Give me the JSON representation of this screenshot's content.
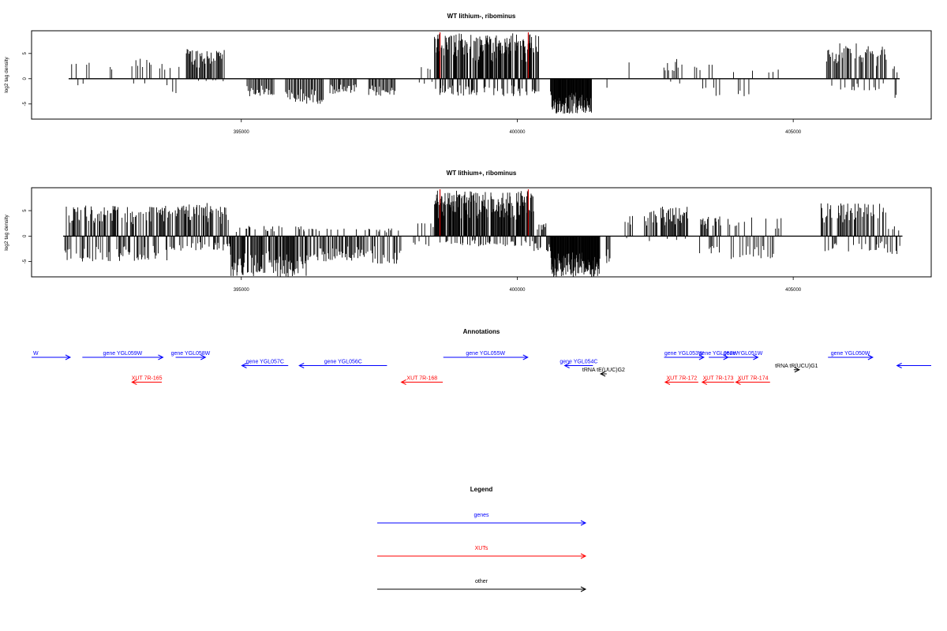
{
  "colors": {
    "gene": "#0000ff",
    "xut": "#ff0000",
    "other": "#000000",
    "marker": "#cc0000",
    "signal": "#000000"
  },
  "chart_data": [
    {
      "type": "bar",
      "title": "WT lithium-, ribominus",
      "ylabel": "log2 tag density",
      "xlim": [
        391200,
        407500
      ],
      "ylim": [
        -8,
        9.5
      ],
      "yticks": [
        -5,
        0,
        5
      ],
      "xticks": [
        395000,
        400000,
        405000
      ],
      "markers_x": [
        398600,
        400200
      ],
      "segments": [
        {
          "start": 391900,
          "end": 392300,
          "min": -1.5,
          "max": 3.5,
          "n": 6
        },
        {
          "start": 392600,
          "end": 392700,
          "min": 0,
          "max": 2.5,
          "n": 2
        },
        {
          "start": 393000,
          "end": 393400,
          "min": -1,
          "max": 4,
          "n": 10
        },
        {
          "start": 393500,
          "end": 393900,
          "min": -3.5,
          "max": 3,
          "n": 8
        },
        {
          "start": 394000,
          "end": 394700,
          "min": -0.5,
          "max": 6,
          "n": 45
        },
        {
          "start": 395100,
          "end": 395600,
          "min": -3.5,
          "max": 0,
          "n": 25
        },
        {
          "start": 395800,
          "end": 396500,
          "min": -5,
          "max": 0,
          "n": 35
        },
        {
          "start": 396600,
          "end": 397100,
          "min": -3,
          "max": 0,
          "n": 25
        },
        {
          "start": 397300,
          "end": 397800,
          "min": -3.5,
          "max": 0,
          "n": 25
        },
        {
          "start": 398200,
          "end": 398500,
          "min": -1,
          "max": 2.5,
          "n": 6
        },
        {
          "start": 398500,
          "end": 400400,
          "min": -3.5,
          "max": 9,
          "n": 200
        },
        {
          "start": 400600,
          "end": 401350,
          "min": -7,
          "max": 0,
          "n": 90
        },
        {
          "start": 401600,
          "end": 401650,
          "min": -2,
          "max": 0,
          "n": 1
        },
        {
          "start": 402000,
          "end": 402050,
          "min": 0,
          "max": 3.5,
          "n": 1
        },
        {
          "start": 402650,
          "end": 403000,
          "min": -1,
          "max": 4,
          "n": 12
        },
        {
          "start": 403200,
          "end": 403700,
          "min": -3.5,
          "max": 3,
          "n": 10
        },
        {
          "start": 403900,
          "end": 404300,
          "min": -3.5,
          "max": 2.5,
          "n": 6
        },
        {
          "start": 404500,
          "end": 404800,
          "min": 0,
          "max": 2.5,
          "n": 3
        },
        {
          "start": 405600,
          "end": 406700,
          "min": -2.5,
          "max": 7,
          "n": 60
        },
        {
          "start": 406800,
          "end": 406900,
          "min": -4.5,
          "max": 2.5,
          "n": 5
        }
      ]
    },
    {
      "type": "bar",
      "title": "WT lithium+, ribominus",
      "ylabel": "log2 tag density",
      "xlim": [
        391200,
        407500
      ],
      "ylim": [
        -8,
        9.5
      ],
      "yticks": [
        -5,
        0,
        5
      ],
      "xticks": [
        395000,
        400000,
        405000
      ],
      "markers_x": [
        398600,
        400200
      ],
      "segments": [
        {
          "start": 391800,
          "end": 393900,
          "min": -5,
          "max": 6,
          "n": 150
        },
        {
          "start": 393900,
          "end": 394800,
          "min": -3,
          "max": 6.5,
          "n": 70
        },
        {
          "start": 394800,
          "end": 396200,
          "min": -8,
          "max": 2,
          "n": 110
        },
        {
          "start": 396200,
          "end": 397200,
          "min": -5,
          "max": 1.5,
          "n": 55
        },
        {
          "start": 397200,
          "end": 397900,
          "min": -5.5,
          "max": 1.5,
          "n": 35
        },
        {
          "start": 398100,
          "end": 398500,
          "min": -2,
          "max": 3,
          "n": 10
        },
        {
          "start": 398500,
          "end": 400300,
          "min": -2,
          "max": 9,
          "n": 200
        },
        {
          "start": 400300,
          "end": 400600,
          "min": -3,
          "max": 2.5,
          "n": 20
        },
        {
          "start": 400600,
          "end": 401500,
          "min": -8,
          "max": 0,
          "n": 110
        },
        {
          "start": 401600,
          "end": 401700,
          "min": -5.5,
          "max": 0,
          "n": 5
        },
        {
          "start": 401950,
          "end": 402100,
          "min": -1,
          "max": 4,
          "n": 6
        },
        {
          "start": 402300,
          "end": 402550,
          "min": -1,
          "max": 5,
          "n": 12
        },
        {
          "start": 402600,
          "end": 403100,
          "min": -1,
          "max": 6,
          "n": 35
        },
        {
          "start": 403300,
          "end": 403700,
          "min": -3.5,
          "max": 4,
          "n": 25
        },
        {
          "start": 403800,
          "end": 404800,
          "min": -4.5,
          "max": 4,
          "n": 30
        },
        {
          "start": 405500,
          "end": 406700,
          "min": -3,
          "max": 6.5,
          "n": 70
        },
        {
          "start": 406700,
          "end": 406950,
          "min": -4.5,
          "max": 2,
          "n": 10
        }
      ]
    }
  ],
  "annotations": {
    "title": "Annotations",
    "features": [
      {
        "kind": "gene",
        "label": "W",
        "start": 391200,
        "end": 391900,
        "strand": "+",
        "row": 0
      },
      {
        "kind": "gene",
        "label": "gene YGL059W",
        "start": 392120,
        "end": 393580,
        "strand": "+",
        "row": 0
      },
      {
        "kind": "gene",
        "label": "gene YGL058W",
        "start": 393810,
        "end": 394350,
        "strand": "+",
        "row": 0
      },
      {
        "kind": "gene",
        "label": "gene YGL057C",
        "start": 395010,
        "end": 395850,
        "strand": "-",
        "row": 1
      },
      {
        "kind": "gene",
        "label": "gene YGL056C",
        "start": 396050,
        "end": 397640,
        "strand": "-",
        "row": 1
      },
      {
        "kind": "gene",
        "label": "gene YGL055W",
        "start": 398660,
        "end": 400190,
        "strand": "+",
        "row": 0
      },
      {
        "kind": "gene",
        "label": "gene YGL054C",
        "start": 400860,
        "end": 401370,
        "strand": "-",
        "row": 1
      },
      {
        "kind": "gene",
        "label": "gene YGL053W",
        "start": 402660,
        "end": 403380,
        "strand": "+",
        "row": 0
      },
      {
        "kind": "gene",
        "label": "gene YGL052W",
        "start": 403470,
        "end": 403820,
        "strand": "+",
        "row": 0
      },
      {
        "kind": "gene",
        "label": "gene YGL051W",
        "start": 403820,
        "end": 404360,
        "strand": "+",
        "row": 0
      },
      {
        "kind": "gene",
        "label": "gene YGL050W",
        "start": 405630,
        "end": 406440,
        "strand": "+",
        "row": 0
      },
      {
        "kind": "gene",
        "label": "",
        "start": 406880,
        "end": 407500,
        "strand": "-",
        "row": 1
      },
      {
        "kind": "other",
        "label": "tRNA tE(UUC)G2",
        "start": 401510,
        "end": 401620,
        "strand": "-",
        "row": 2
      },
      {
        "kind": "other",
        "label": "tRNA tR(UCU)G1",
        "start": 405010,
        "end": 405110,
        "strand": "+",
        "row": 1.5
      },
      {
        "kind": "xut",
        "label": "XUT 7R-165",
        "start": 393020,
        "end": 393560,
        "strand": "-",
        "row": 3
      },
      {
        "kind": "xut",
        "label": "XUT 7R-168",
        "start": 397900,
        "end": 398650,
        "strand": "-",
        "row": 3
      },
      {
        "kind": "xut",
        "label": "XUT 7R-172",
        "start": 402680,
        "end": 403280,
        "strand": "-",
        "row": 3
      },
      {
        "kind": "xut",
        "label": "XUT 7R-173",
        "start": 403350,
        "end": 403930,
        "strand": "-",
        "row": 3
      },
      {
        "kind": "xut",
        "label": "XUT 7R-174",
        "start": 403960,
        "end": 404580,
        "strand": "-",
        "row": 3
      }
    ]
  },
  "legend": {
    "title": "Legend",
    "entries": [
      {
        "kind": "gene",
        "label": "genes"
      },
      {
        "kind": "xut",
        "label": "XUTs"
      },
      {
        "kind": "other",
        "label": "other"
      }
    ]
  }
}
